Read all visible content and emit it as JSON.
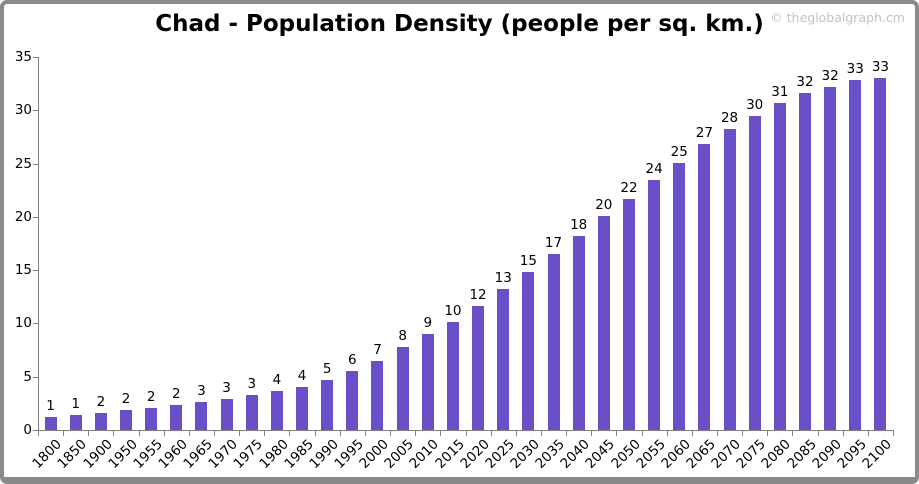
{
  "header": {
    "title": "Chad - Population Density (people per sq. km.)",
    "watermark": "© theglobalgraph.cm"
  },
  "chart_data": {
    "type": "bar",
    "title": "Chad - Population Density (people per sq. km.)",
    "categories": [
      "1800",
      "1850",
      "1900",
      "1950",
      "1955",
      "1960",
      "1965",
      "1970",
      "1975",
      "1980",
      "1985",
      "1990",
      "1995",
      "2000",
      "2005",
      "2010",
      "2015",
      "2020",
      "2025",
      "2030",
      "2035",
      "2040",
      "2045",
      "2050",
      "2055",
      "2060",
      "2065",
      "2070",
      "2075",
      "2080",
      "2085",
      "2090",
      "2095",
      "2100"
    ],
    "values": [
      1,
      1,
      2,
      2,
      2,
      2,
      3,
      3,
      3,
      4,
      4,
      5,
      6,
      7,
      8,
      9,
      10,
      12,
      13,
      15,
      17,
      18,
      20,
      22,
      24,
      25,
      27,
      28,
      30,
      31,
      32,
      32,
      33,
      33
    ],
    "bar_heights_est": [
      1.2,
      1.4,
      1.6,
      1.9,
      2.1,
      2.3,
      2.6,
      2.9,
      3.3,
      3.7,
      4.0,
      4.7,
      5.5,
      6.5,
      7.8,
      9.0,
      10.1,
      11.6,
      13.2,
      14.8,
      16.5,
      18.2,
      20.1,
      21.7,
      23.5,
      25.1,
      26.8,
      28.2,
      29.5,
      30.7,
      31.6,
      32.2,
      32.8,
      33.0
    ],
    "xlabel": "",
    "ylabel": "",
    "y_ticks": [
      0,
      5,
      10,
      15,
      20,
      25,
      30,
      35
    ],
    "ylim": [
      0,
      35
    ],
    "grid": false,
    "legend": "none",
    "data_labels": "above-bars",
    "x_label_rotation_deg": 45,
    "bar_color": "#6A4FC9",
    "axis_color": "#808080",
    "label_color": "#000000",
    "watermark_color": "#C2C2C2",
    "frame_color": "#8A8A8A",
    "background": "#FFFFFF"
  }
}
